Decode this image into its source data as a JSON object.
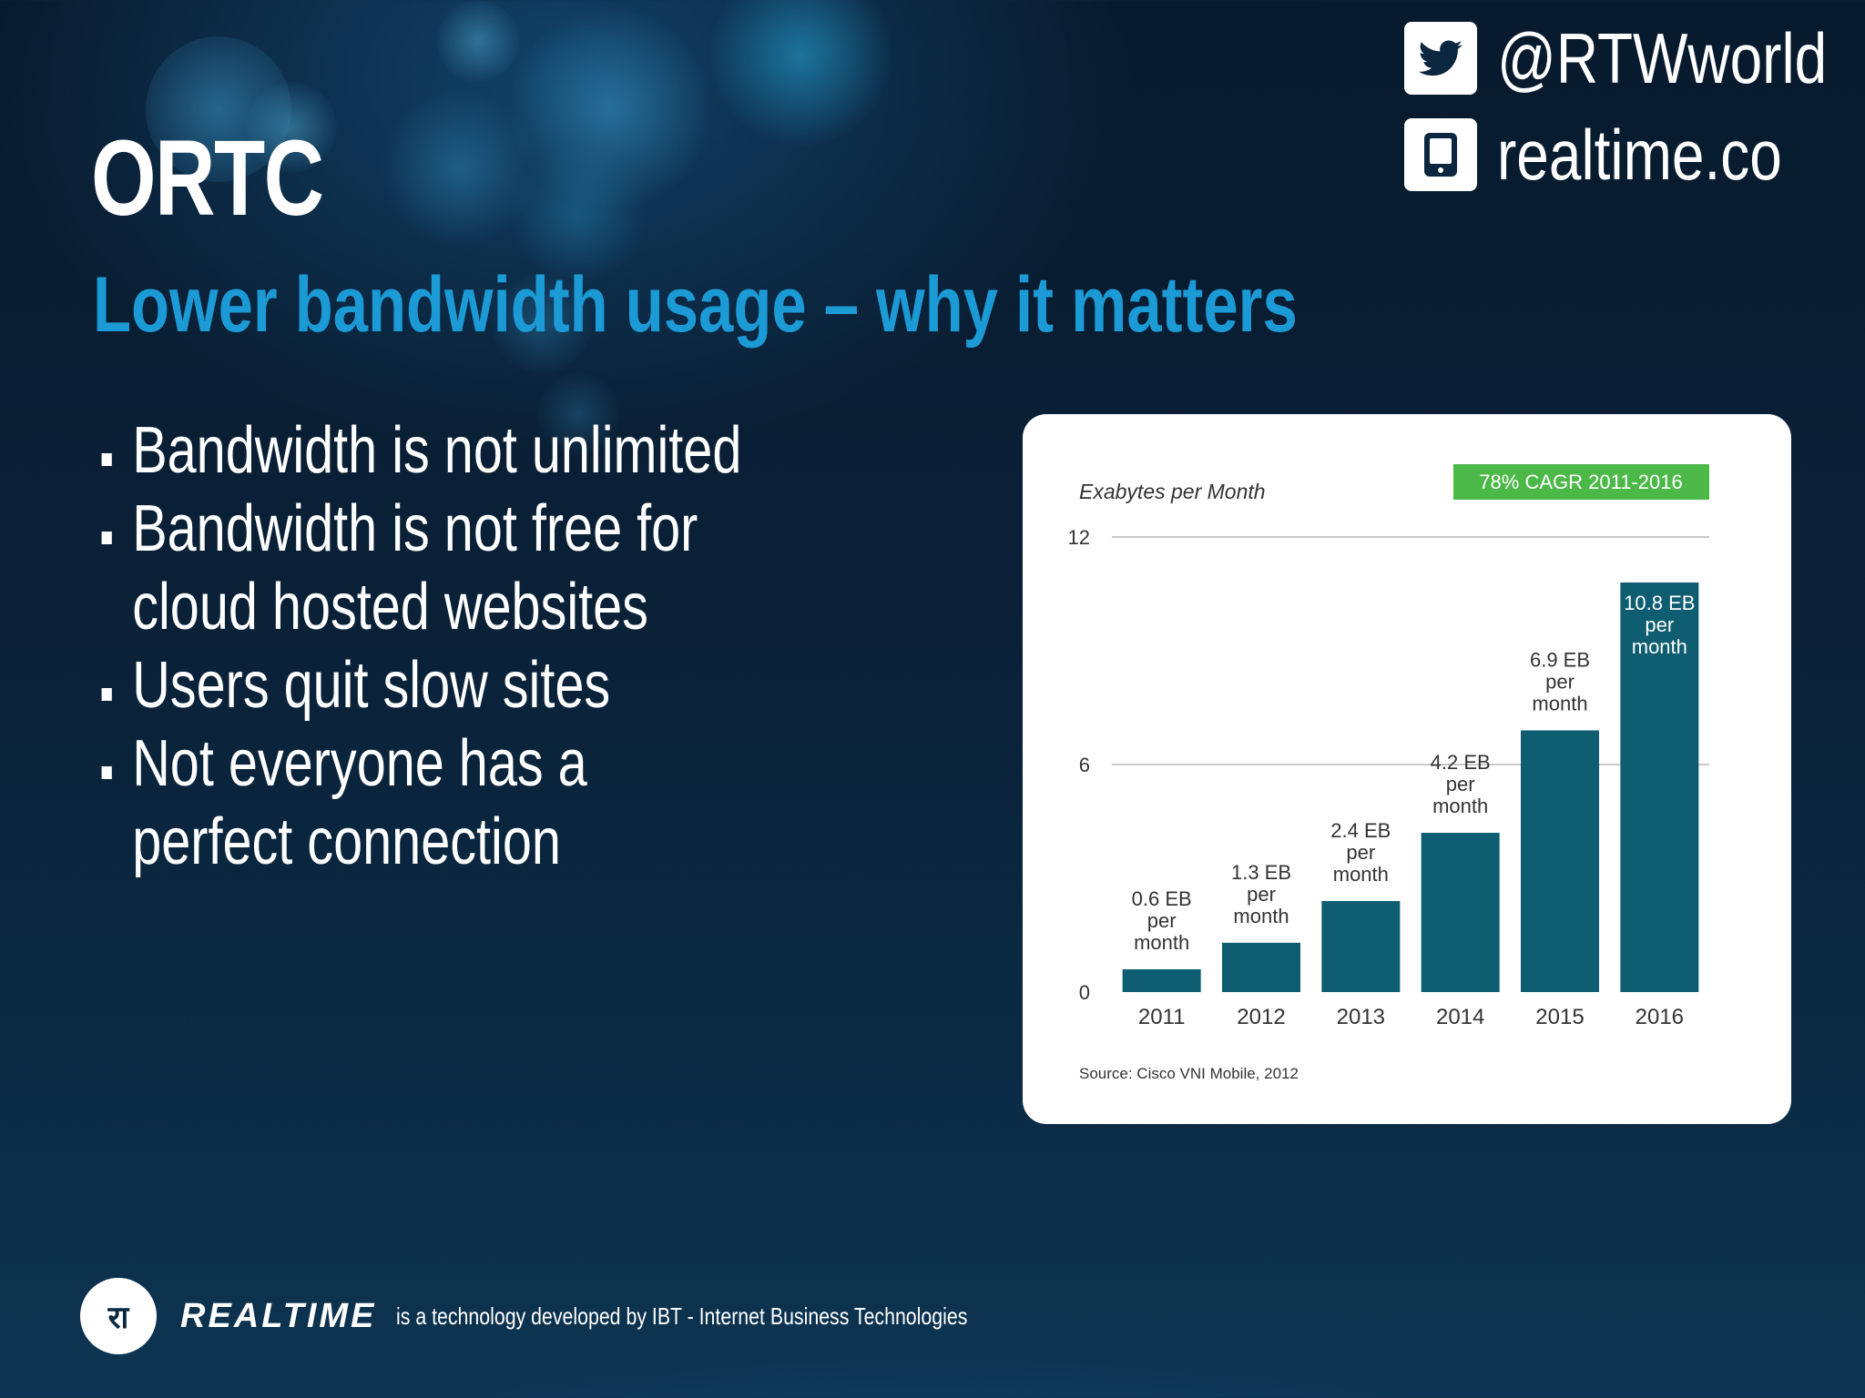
{
  "slide": {
    "title": "ORTC",
    "subtitle": "Lower bandwidth usage – why it matters",
    "bullets": [
      "Bandwidth is not unlimited",
      "Bandwidth is not free for cloud hosted websites",
      "Users quit slow sites",
      "Not everyone has a perfect connection"
    ]
  },
  "social": {
    "twitter_handle": "@RTWworld",
    "website": "realtime.co",
    "twitter_icon": "twitter-bird-icon",
    "website_icon": "tablet-icon"
  },
  "footer": {
    "logo_glyph": "रा",
    "brand": "REALTIME",
    "tagline": "is a technology developed by IBT - Internet Business Technologies"
  },
  "colors": {
    "subtitle": "#1c9ad6",
    "bar": "#0e5d70",
    "cagr_badge": "#4cb848"
  },
  "chart_data": {
    "type": "bar",
    "title": "Exabytes per Month",
    "badge": "78% CAGR 2011-2016",
    "source": "Source: Cisco VNI Mobile, 2012",
    "categories": [
      "2011",
      "2012",
      "2013",
      "2014",
      "2015",
      "2016"
    ],
    "values": [
      0.6,
      1.3,
      2.4,
      4.2,
      6.9,
      10.8
    ],
    "data_labels": [
      [
        "0.6 EB",
        "per",
        "month"
      ],
      [
        "1.3 EB",
        "per",
        "month"
      ],
      [
        "2.4 EB",
        "per",
        "month"
      ],
      [
        "4.2 EB",
        "per",
        "month"
      ],
      [
        "6.9 EB",
        "per",
        "month"
      ],
      [
        "10.8 EB",
        "per",
        "month"
      ]
    ],
    "yticks": [
      0,
      6,
      12
    ],
    "ylim": [
      0,
      12
    ],
    "grid": true,
    "legend": "none"
  }
}
